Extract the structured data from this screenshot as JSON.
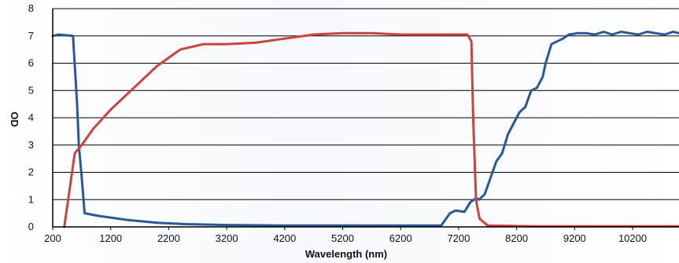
{
  "chart_data": {
    "type": "line",
    "title": "",
    "xlabel": "Wavelength (nm)",
    "ylabel": "OD",
    "xlim": [
      200,
      11000
    ],
    "ylim": [
      0,
      8
    ],
    "x_ticks": [
      200,
      1200,
      2200,
      3200,
      4200,
      5200,
      6200,
      7200,
      8200,
      9200,
      10200
    ],
    "y_ticks": [
      0,
      1,
      2,
      3,
      4,
      5,
      6,
      7,
      8
    ],
    "grid": "horizontal",
    "legend": "none",
    "series": [
      {
        "color": "#2b5797",
        "points": [
          [
            200,
            7.0
          ],
          [
            300,
            7.05
          ],
          [
            550,
            7.0
          ],
          [
            620,
            4.5
          ],
          [
            650,
            3.0
          ],
          [
            700,
            1.8
          ],
          [
            750,
            0.5
          ],
          [
            1000,
            0.4
          ],
          [
            1500,
            0.25
          ],
          [
            2000,
            0.15
          ],
          [
            2500,
            0.1
          ],
          [
            3200,
            0.07
          ],
          [
            4200,
            0.05
          ],
          [
            5200,
            0.05
          ],
          [
            6200,
            0.05
          ],
          [
            6900,
            0.05
          ],
          [
            7050,
            0.5
          ],
          [
            7150,
            0.6
          ],
          [
            7300,
            0.55
          ],
          [
            7400,
            0.9
          ],
          [
            7500,
            1.05
          ],
          [
            7550,
            1.0
          ],
          [
            7650,
            1.2
          ],
          [
            7750,
            1.8
          ],
          [
            7850,
            2.4
          ],
          [
            7950,
            2.7
          ],
          [
            8050,
            3.4
          ],
          [
            8150,
            3.8
          ],
          [
            8250,
            4.2
          ],
          [
            8350,
            4.4
          ],
          [
            8450,
            5.0
          ],
          [
            8550,
            5.1
          ],
          [
            8650,
            5.5
          ],
          [
            8700,
            6.0
          ],
          [
            8800,
            6.7
          ],
          [
            8900,
            6.8
          ],
          [
            9000,
            6.9
          ],
          [
            9100,
            7.05
          ],
          [
            9250,
            7.1
          ],
          [
            9400,
            7.1
          ],
          [
            9550,
            7.05
          ],
          [
            9700,
            7.15
          ],
          [
            9850,
            7.05
          ],
          [
            10000,
            7.15
          ],
          [
            10150,
            7.1
          ],
          [
            10300,
            7.05
          ],
          [
            10450,
            7.15
          ],
          [
            10600,
            7.1
          ],
          [
            10750,
            7.05
          ],
          [
            10900,
            7.15
          ],
          [
            11000,
            7.1
          ]
        ]
      },
      {
        "color": "#c8443f",
        "points": [
          [
            400,
            0.0
          ],
          [
            500,
            1.5
          ],
          [
            580,
            2.7
          ],
          [
            700,
            3.0
          ],
          [
            900,
            3.6
          ],
          [
            1200,
            4.3
          ],
          [
            1600,
            5.1
          ],
          [
            2000,
            5.9
          ],
          [
            2400,
            6.5
          ],
          [
            2800,
            6.7
          ],
          [
            3200,
            6.7
          ],
          [
            3700,
            6.75
          ],
          [
            4200,
            6.9
          ],
          [
            4700,
            7.05
          ],
          [
            5200,
            7.1
          ],
          [
            5700,
            7.1
          ],
          [
            6200,
            7.05
          ],
          [
            6700,
            7.05
          ],
          [
            7200,
            7.05
          ],
          [
            7350,
            7.05
          ],
          [
            7420,
            6.8
          ],
          [
            7450,
            4.0
          ],
          [
            7500,
            1.0
          ],
          [
            7560,
            0.3
          ],
          [
            7700,
            0.05
          ],
          [
            8500,
            0.02
          ],
          [
            11000,
            0.02
          ]
        ]
      }
    ]
  }
}
